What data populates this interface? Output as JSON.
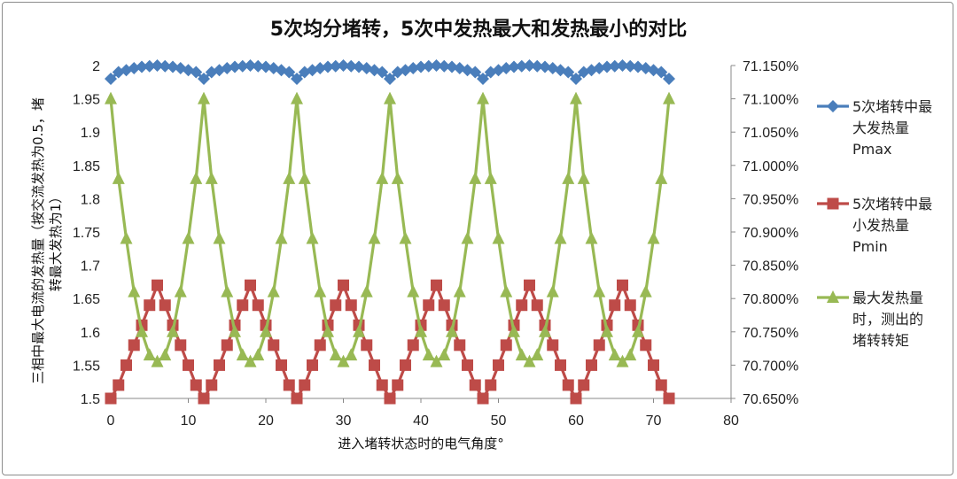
{
  "chart_data": {
    "type": "line",
    "title": "5次均分堵转，5次中发热最大和发热最小的对比",
    "xlabel": "进入堵转状态时的电气角度°",
    "ylabel": [
      "三相中最大电流的发热量（按交流发热为0.5，堵",
      "转最大发热为1）"
    ],
    "xlim": [
      0,
      80
    ],
    "ylim": [
      1.5,
      2
    ],
    "y2lim": [
      70.65,
      71.15
    ],
    "x_ticks": [
      "0",
      "10",
      "20",
      "30",
      "40",
      "50",
      "60",
      "70",
      "80"
    ],
    "y_ticks": [
      "2",
      "1.95",
      "1.9",
      "1.85",
      "1.8",
      "1.75",
      "1.7",
      "1.65",
      "1.6",
      "1.55",
      "1.5"
    ],
    "y2_ticks": [
      "71.150%",
      "71.100%",
      "71.050%",
      "71.000%",
      "70.950%",
      "70.900%",
      "70.850%",
      "70.800%",
      "70.750%",
      "70.700%",
      "70.650%"
    ],
    "x": [
      0,
      1,
      2,
      3,
      4,
      5,
      6,
      7,
      8,
      9,
      10,
      11,
      12,
      13,
      14,
      15,
      16,
      17,
      18,
      19,
      20,
      21,
      22,
      23,
      24,
      25,
      26,
      27,
      28,
      29,
      30,
      31,
      32,
      33,
      34,
      35,
      36,
      37,
      38,
      39,
      40,
      41,
      42,
      43,
      44,
      45,
      46,
      47,
      48,
      49,
      50,
      51,
      52,
      53,
      54,
      55,
      56,
      57,
      58,
      59,
      60,
      61,
      62,
      63,
      64,
      65,
      66,
      67,
      68,
      69,
      70,
      71,
      72
    ],
    "series": [
      {
        "name": [
          "5次堵转中最",
          "大发热量",
          "Pmax"
        ],
        "axis": "left",
        "marker": "diamond",
        "color": "#4a7ebb",
        "base": [
          1.98,
          1.99,
          1.993,
          1.996,
          1.998,
          1.999,
          2.0,
          1.999,
          1.998,
          1.996,
          1.993,
          1.99
        ]
      },
      {
        "name": [
          "5次堵转中最",
          "小发热量",
          "Pmin"
        ],
        "axis": "left",
        "marker": "square",
        "color": "#be4b48",
        "base": [
          1.5,
          1.52,
          1.55,
          1.58,
          1.61,
          1.64,
          1.67,
          1.64,
          1.61,
          1.58,
          1.55,
          1.52
        ]
      },
      {
        "name": [
          "最大发热量",
          "时，测出的",
          "堵转转矩"
        ],
        "axis": "right",
        "marker": "triangle",
        "color": "#98b954",
        "base": [
          71.1,
          70.98,
          70.89,
          70.81,
          70.75,
          70.715,
          70.705,
          70.715,
          70.75,
          70.81,
          70.89,
          70.98
        ]
      }
    ],
    "grid": false,
    "legend_position": "right"
  }
}
